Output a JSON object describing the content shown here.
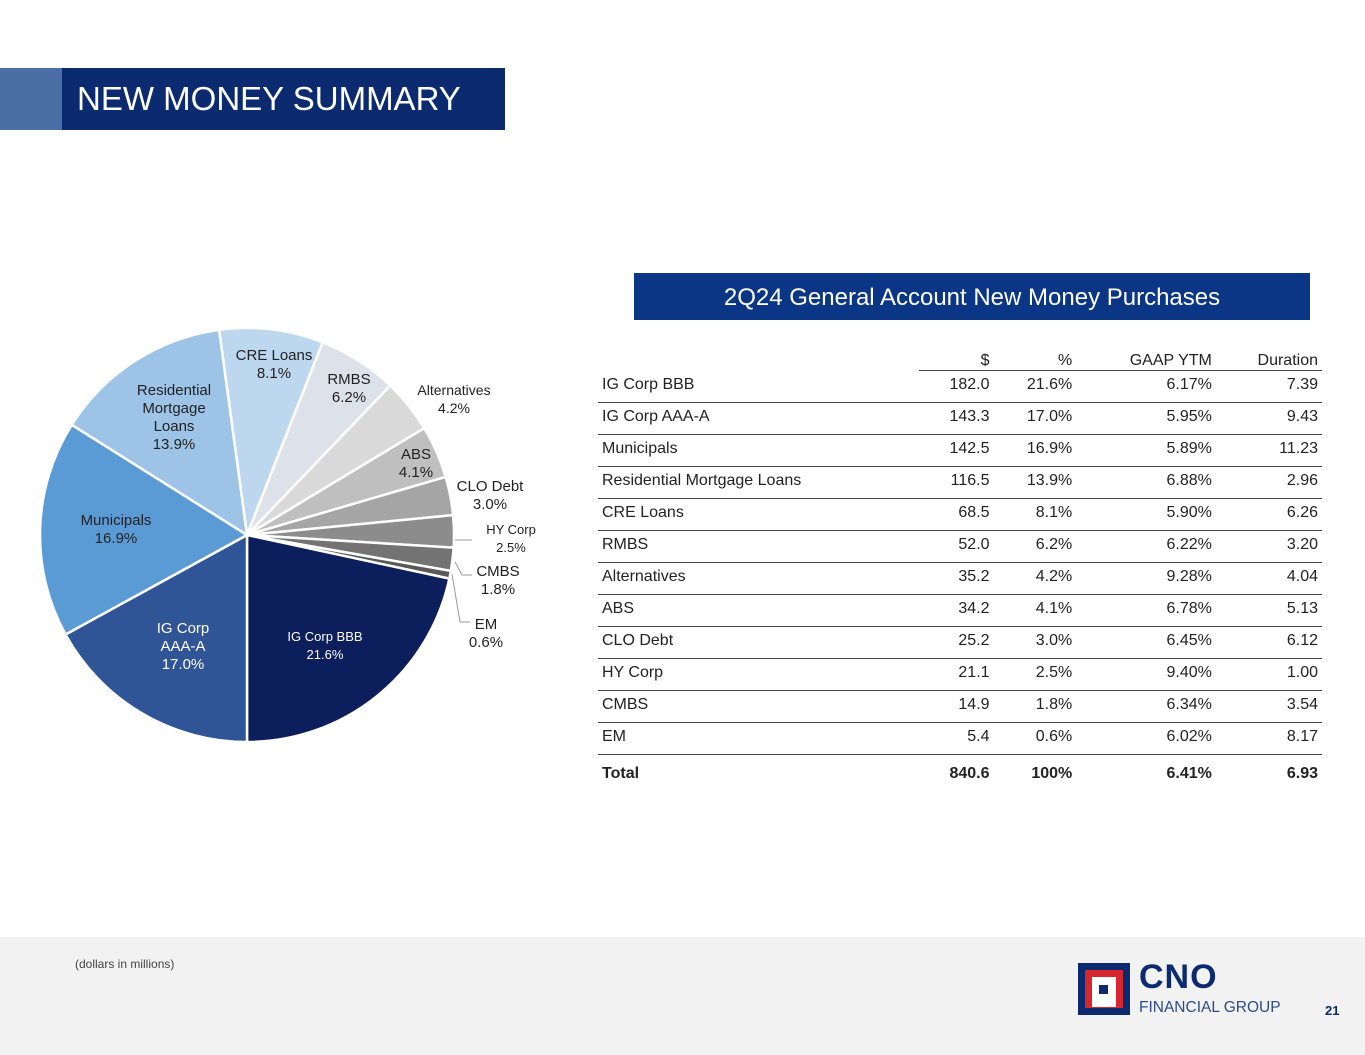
{
  "header": {
    "title": "NEW MONEY SUMMARY"
  },
  "table_title": "2Q24 General Account New Money Purchases",
  "chart_data": {
    "type": "pie",
    "title": "2Q24 General Account New Money Purchases",
    "slices": [
      {
        "label": "CRE Loans",
        "value": 8.1,
        "display": "8.1%",
        "color": "#bdd7ee"
      },
      {
        "label": "RMBS",
        "value": 6.2,
        "display": "6.2%",
        "color": "#dde1ea"
      },
      {
        "label": "Alternatives",
        "value": 4.2,
        "display": "4.2%",
        "color": "#d9d9d9"
      },
      {
        "label": "ABS",
        "value": 4.1,
        "display": "4.1%",
        "color": "#bfbfbf"
      },
      {
        "label": "CLO Debt",
        "value": 3.0,
        "display": "3.0%",
        "color": "#a5a5a5"
      },
      {
        "label": "HY Corp",
        "value": 2.5,
        "display": "2.5%",
        "color": "#8c8c8c"
      },
      {
        "label": "CMBS",
        "value": 1.8,
        "display": "1.8%",
        "color": "#737373"
      },
      {
        "label": "EM",
        "value": 0.6,
        "display": "0.6%",
        "color": "#595959"
      },
      {
        "label": "IG Corp BBB",
        "value": 21.6,
        "display": "21.6%",
        "color": "#0c1f5c"
      },
      {
        "label": "IG Corp AAA-A",
        "value": 17.0,
        "display": "17.0%",
        "color": "#2f5597"
      },
      {
        "label": "Municipals",
        "value": 16.9,
        "display": "16.9%",
        "color": "#5b9bd5"
      },
      {
        "label": "Residential Mortgage Loans",
        "value": 13.9,
        "display": "13.9%",
        "color": "#9dc3e6"
      }
    ]
  },
  "table": {
    "headers": [
      "",
      "$",
      "%",
      "GAAP YTM",
      "Duration"
    ],
    "rows": [
      [
        "IG Corp BBB",
        "182.0",
        "21.6%",
        "6.17%",
        "7.39"
      ],
      [
        "IG Corp AAA-A",
        "143.3",
        "17.0%",
        "5.95%",
        "9.43"
      ],
      [
        "Municipals",
        "142.5",
        "16.9%",
        "5.89%",
        "11.23"
      ],
      [
        "Residential Mortgage Loans",
        "116.5",
        "13.9%",
        "6.88%",
        "2.96"
      ],
      [
        "CRE Loans",
        "68.5",
        "8.1%",
        "5.90%",
        "6.26"
      ],
      [
        "RMBS",
        "52.0",
        "6.2%",
        "6.22%",
        "3.20"
      ],
      [
        "Alternatives",
        "35.2",
        "4.2%",
        "9.28%",
        "4.04"
      ],
      [
        "ABS",
        "34.2",
        "4.1%",
        "6.78%",
        "5.13"
      ],
      [
        "CLO Debt",
        "25.2",
        "3.0%",
        "6.45%",
        "6.12"
      ],
      [
        "HY Corp",
        "21.1",
        "2.5%",
        "9.40%",
        "1.00"
      ],
      [
        "CMBS",
        "14.9",
        "1.8%",
        "6.34%",
        "3.54"
      ],
      [
        "EM",
        "5.4",
        "0.6%",
        "6.02%",
        "8.17"
      ]
    ],
    "total": [
      "Total",
      "840.6",
      "100%",
      "6.41%",
      "6.93"
    ]
  },
  "footer": {
    "note": "(dollars in millions)",
    "page": "21",
    "logo_main": "CNO",
    "logo_sub": "FINANCIAL GROUP"
  }
}
